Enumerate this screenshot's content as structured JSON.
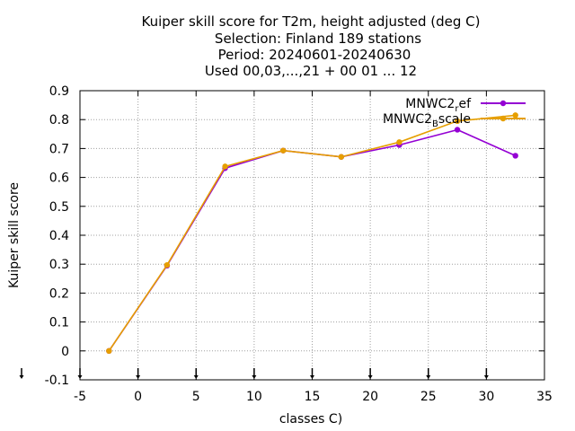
{
  "chart_data": {
    "type": "line",
    "title_lines": [
      "Kuiper skill score  for T2m, height adjusted (deg C)",
      "Selection: Finland    189 stations",
      "Period: 20240601-20240630",
      "Used 00,03,...,21 + 00 01 ... 12"
    ],
    "xlabel": "classes C)",
    "ylabel": "Kuiper skill score",
    "xlim": [
      -5,
      35
    ],
    "ylim": [
      -0.1,
      0.9
    ],
    "x_ticks": [
      "-5",
      "0",
      "5",
      "10",
      "15",
      "20",
      "25",
      "30",
      "35"
    ],
    "y_ticks": [
      "-0.1",
      "0",
      "0.1",
      "0.2",
      "0.3",
      "0.4",
      "0.5",
      "0.6",
      "0.7",
      "0.8",
      "0.9"
    ],
    "grid": true,
    "legend_position": "top-right",
    "legend_entries": [
      {
        "base": "MNWC2",
        "sub": "r",
        "rest": "ef"
      },
      {
        "base": "MNWC2",
        "sub": "B",
        "rest": "scale"
      }
    ],
    "series": [
      {
        "name": "MNWC2_ref",
        "color": "#9400d3",
        "x": [
          -2.5,
          2.5,
          7.5,
          12.5,
          17.5,
          22.5,
          27.5,
          32.5
        ],
        "y": [
          0.0,
          0.295,
          0.632,
          0.693,
          0.671,
          0.712,
          0.765,
          0.675
        ]
      },
      {
        "name": "MNWC2_Bscale",
        "color": "#e69f00",
        "x": [
          -2.5,
          2.5,
          7.5,
          12.5,
          17.5,
          22.5,
          27.5,
          32.5
        ],
        "y": [
          0.0,
          0.297,
          0.638,
          0.693,
          0.671,
          0.722,
          0.795,
          0.815
        ]
      }
    ],
    "sample_size_markers_x": [
      -5,
      0,
      5,
      10,
      15,
      20,
      25,
      30
    ]
  }
}
